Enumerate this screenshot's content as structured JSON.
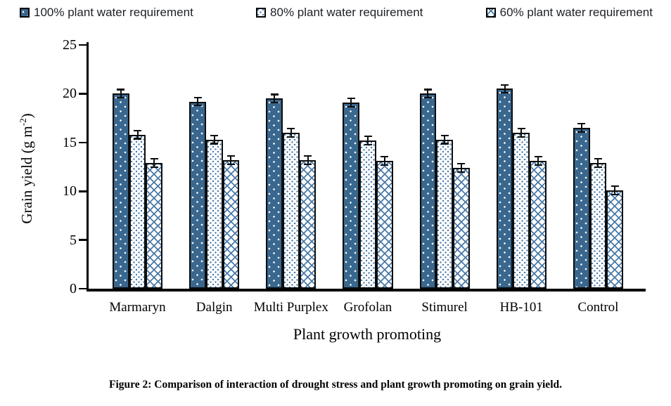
{
  "figure": {
    "caption": "Figure 2: Comparison of interaction of drought stress and plant growth promoting on grain yield."
  },
  "colors": {
    "bar_dark_blue": "#39678E",
    "pattern_blue": "#4A7AA8",
    "axis": "#000000",
    "text": "#1A1A1A"
  },
  "chart_data": {
    "type": "bar",
    "title": "",
    "xlabel": "Plant growth promoting",
    "ylabel": {
      "prefix": "Grain yield (g m",
      "sup": "-2",
      "suffix": ")"
    },
    "ylim": [
      0,
      25
    ],
    "yticks": [
      0,
      5,
      10,
      15,
      20,
      25
    ],
    "grid": false,
    "legend_position": "top",
    "categories": [
      "Marmaryn",
      "Dalgin",
      "Multi Purplex",
      "Grofolan",
      "Stimurel",
      "HB-101",
      "Control"
    ],
    "series": [
      {
        "name": "100% plant water requirement",
        "pattern": "solid-dark-blue-with-white-dots",
        "values": [
          20.0,
          19.2,
          19.5,
          19.1,
          20.0,
          20.5,
          16.5
        ],
        "error": 0.5
      },
      {
        "name": "80% plant water requirement",
        "pattern": "white-with-blue-dots",
        "values": [
          15.8,
          15.3,
          16.0,
          15.2,
          15.3,
          16.0,
          12.9
        ],
        "error": 0.5
      },
      {
        "name": "60% plant water requirement",
        "pattern": "white-with-blue-crosshatch",
        "values": [
          12.9,
          13.2,
          13.2,
          13.1,
          12.4,
          13.1,
          10.1
        ],
        "error": 0.5
      }
    ]
  }
}
